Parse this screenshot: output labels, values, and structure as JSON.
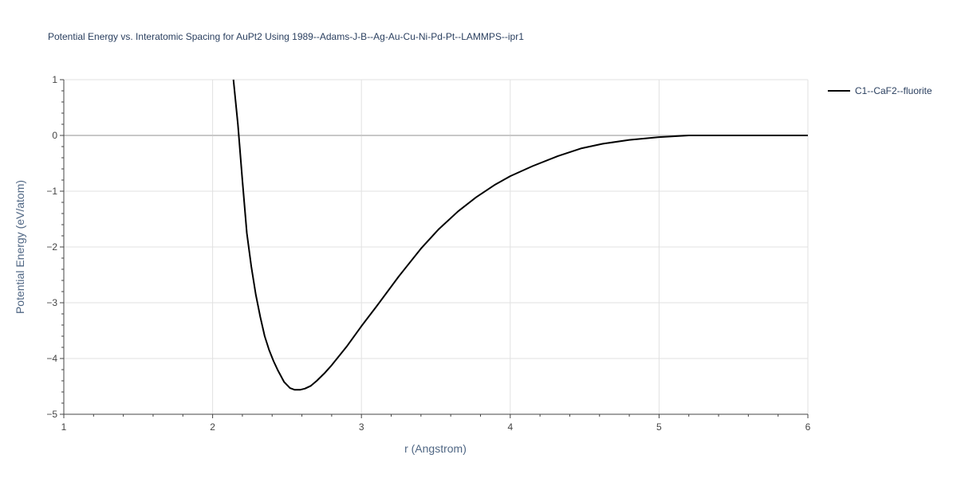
{
  "chart_data": {
    "type": "line",
    "title": "Potential Energy vs. Interatomic Spacing for AuPt2 Using 1989--Adams-J-B--Ag-Au-Cu-Ni-Pd-Pt--LAMMPS--ipr1",
    "xlabel": "r (Angstrom)",
    "ylabel": "Potential Energy (eV/atom)",
    "xlim": [
      1,
      6
    ],
    "ylim": [
      -5,
      1
    ],
    "xticks": [
      1,
      2,
      3,
      4,
      5,
      6
    ],
    "xtick_labels": [
      "1",
      "2",
      "3",
      "4",
      "5",
      "6"
    ],
    "yticks": [
      1,
      0,
      -1,
      -2,
      -3,
      -4,
      -5
    ],
    "ytick_labels": [
      "1",
      "0",
      "−1",
      "−2",
      "−3",
      "−4",
      "−5"
    ],
    "grid": true,
    "legend_position": "top-right",
    "series": [
      {
        "name": "C1--CaF2--fluorite",
        "color": "#000000",
        "x": [
          2.14,
          2.17,
          2.2,
          2.23,
          2.26,
          2.29,
          2.32,
          2.35,
          2.38,
          2.41,
          2.44,
          2.48,
          2.52,
          2.55,
          2.59,
          2.62,
          2.66,
          2.7,
          2.75,
          2.8,
          2.9,
          3.0,
          3.1,
          3.25,
          3.4,
          3.52,
          3.65,
          3.77,
          3.9,
          4.0,
          4.15,
          4.32,
          4.48,
          4.62,
          4.8,
          5.0,
          5.2,
          5.5,
          5.8,
          6.0
        ],
        "y": [
          1.0,
          0.2,
          -0.8,
          -1.75,
          -2.35,
          -2.85,
          -3.25,
          -3.6,
          -3.85,
          -4.05,
          -4.22,
          -4.42,
          -4.53,
          -4.56,
          -4.56,
          -4.54,
          -4.49,
          -4.4,
          -4.27,
          -4.12,
          -3.79,
          -3.42,
          -3.07,
          -2.53,
          -2.03,
          -1.68,
          -1.36,
          -1.11,
          -0.88,
          -0.73,
          -0.55,
          -0.37,
          -0.23,
          -0.15,
          -0.08,
          -0.03,
          0.0,
          0.0,
          0.0,
          0.0
        ]
      }
    ]
  }
}
